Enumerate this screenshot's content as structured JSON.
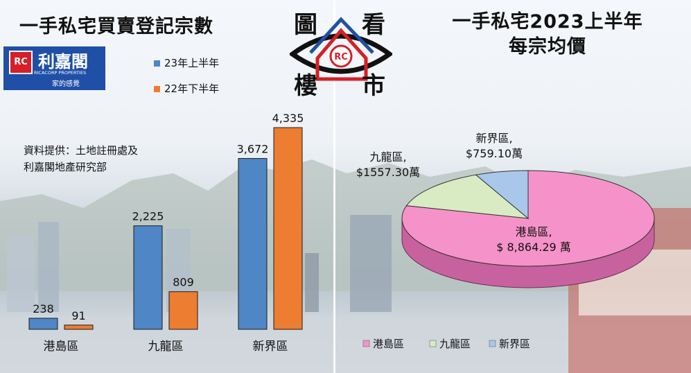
{
  "left_title": "一手私宅買賣登記宗數",
  "right_title_line1": "一手私宅2023上半年",
  "right_title_line2": "每宗均價",
  "logo": {
    "name": "利嘉閣",
    "english": "RICACORP PROPERTIES",
    "slogan": "家的感覺",
    "mark": "RC"
  },
  "center_logo": {
    "chars": [
      "圖",
      "看",
      "樓",
      "市"
    ],
    "mark": "RC"
  },
  "source_line1": "資料提供：土地註冊處及",
  "source_line2": "利嘉閣地產研究部",
  "colors": {
    "blue": "#4f86c6",
    "orange": "#ed7d31",
    "pink": "#f592c9",
    "green": "#d8ebc2",
    "lightblue": "#a9c7ea",
    "logo_blue": "#1f4fa6",
    "logo_red": "#d61f26"
  },
  "chart_data": [
    {
      "type": "bar",
      "title": "一手私宅買賣登記宗數",
      "categories": [
        "港島區",
        "九龍區",
        "新界區"
      ],
      "series": [
        {
          "name": "23年上半年",
          "values": [
            238,
            2225,
            3672
          ],
          "labels": [
            "238",
            "2,225",
            "3,672"
          ]
        },
        {
          "name": "22年下半年",
          "values": [
            91,
            809,
            4335
          ],
          "labels": [
            "91",
            "809",
            "4,335"
          ]
        }
      ],
      "ylim": [
        0,
        4500
      ],
      "grid": false,
      "legend": "top-left"
    },
    {
      "type": "pie",
      "title": "一手私宅2023上半年 每宗均價",
      "categories": [
        "港島區",
        "九龍區",
        "新界區"
      ],
      "values": [
        8864.29,
        1557.3,
        759.1
      ],
      "labels": [
        {
          "name": "港島區,",
          "value": "$ 8,864.29 萬"
        },
        {
          "name": "九龍區,",
          "value": "$1557.30萬"
        },
        {
          "name": "新界區,",
          "value": "$759.10萬"
        }
      ],
      "legend": "bottom"
    }
  ]
}
